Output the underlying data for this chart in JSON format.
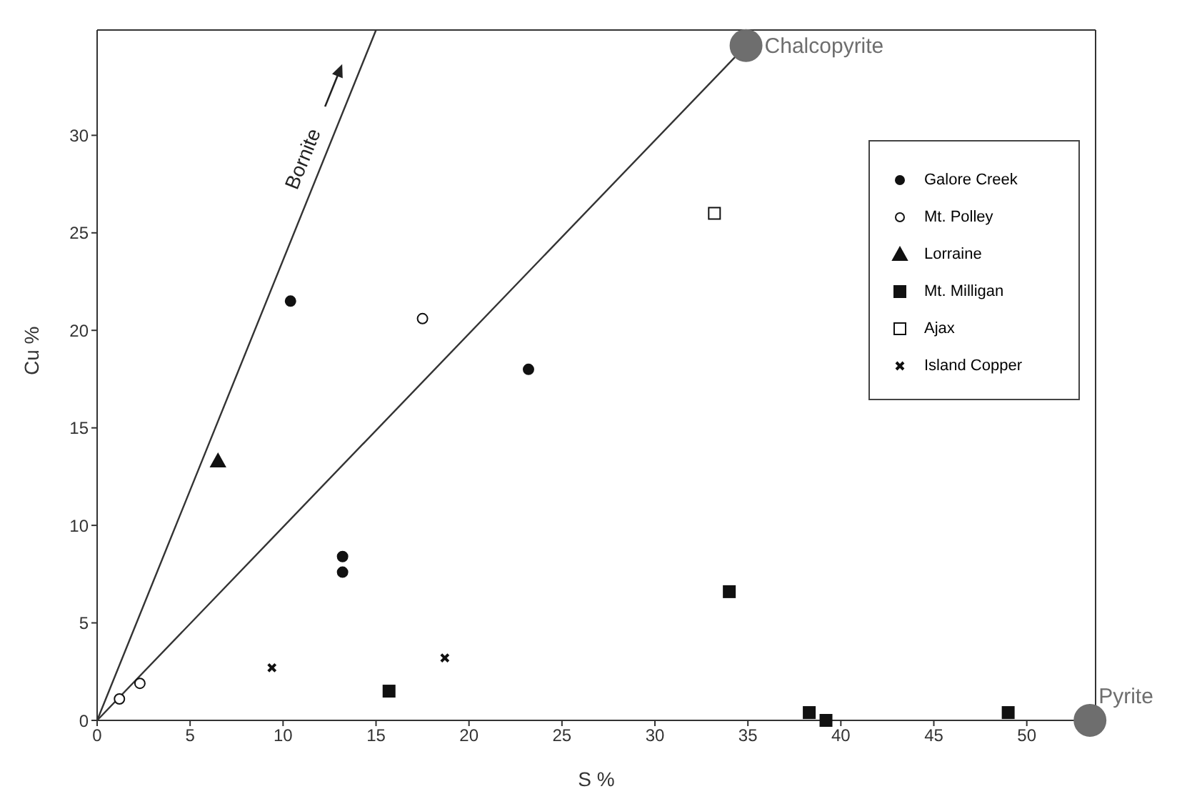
{
  "chart_data": {
    "type": "scatter",
    "xlabel": "S %",
    "ylabel": "Cu %",
    "xlim": [
      0,
      53.7
    ],
    "ylim": [
      0,
      35.4
    ],
    "xticks": [
      0,
      5,
      10,
      15,
      20,
      25,
      30,
      35,
      40,
      45,
      50
    ],
    "yticks": [
      0,
      5,
      10,
      15,
      20,
      25,
      30
    ],
    "grid": false,
    "legend": "top right",
    "annotations": [
      "Bornite"
    ],
    "series": [
      {
        "type": "line",
        "color": "#333333",
        "marker": "none",
        "x": [
          0,
          15.0
        ],
        "values": [
          0,
          35.4
        ]
      },
      {
        "type": "line",
        "color": "#333333",
        "marker": "none",
        "x": [
          0,
          34.9
        ],
        "values": [
          0,
          34.6
        ]
      },
      {
        "name": "Galore Creek",
        "color": "#111111",
        "marker": "circle",
        "x": [
          10.4,
          23.2,
          13.2,
          13.2
        ],
        "values": [
          21.5,
          18.0,
          8.4,
          7.6
        ]
      },
      {
        "name": "Mt. Polley",
        "color": "#ffffff",
        "marker": "circle",
        "x": [
          17.5,
          1.2,
          2.3
        ],
        "values": [
          20.6,
          1.1,
          1.9
        ]
      },
      {
        "name": "Lorraine",
        "color": "#111111",
        "marker": "triangle",
        "x": [
          6.5
        ],
        "values": [
          13.3
        ]
      },
      {
        "name": "Mt. Milligan",
        "color": "#111111",
        "marker": "square",
        "x": [
          15.7,
          34.0,
          38.3,
          39.2,
          49.0
        ],
        "values": [
          1.5,
          6.6,
          0.4,
          0,
          0.4
        ]
      },
      {
        "name": "Ajax",
        "color": "#ffffff",
        "marker": "square",
        "x": [
          33.2
        ],
        "values": [
          26.0
        ]
      },
      {
        "name": "Island Copper",
        "color": "#111111",
        "marker": "cross",
        "x": [
          9.4,
          18.7
        ],
        "values": [
          2.7,
          3.2
        ]
      },
      {
        "name": "Chalcopyrite",
        "type": "bubble",
        "color": "#6e6e6e",
        "marker": "circle",
        "x": [
          34.9
        ],
        "values": [
          34.6
        ],
        "sizes": [
          1
        ]
      },
      {
        "name": "Pyrite",
        "type": "bubble",
        "color": "#6e6e6e",
        "marker": "circle",
        "x": [
          53.4
        ],
        "values": [
          0
        ],
        "sizes": [
          1
        ]
      }
    ]
  }
}
